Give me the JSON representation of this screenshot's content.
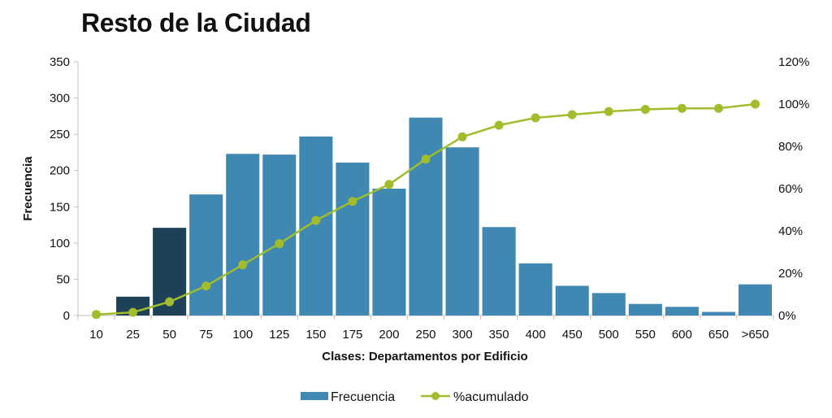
{
  "chart_data": {
    "type": "bar",
    "title": "Resto de la Ciudad",
    "xlabel": "Clases: Departamentos por Edificio",
    "ylabel": "Frecuencia",
    "categories": [
      "10",
      "25",
      "50",
      "75",
      "100",
      "125",
      "150",
      "175",
      "200",
      "250",
      "300",
      "350",
      "400",
      "450",
      "500",
      "550",
      "600",
      "650",
      ">650"
    ],
    "series": [
      {
        "name": "Frecuencia",
        "type": "bar",
        "axis": "left",
        "values": [
          0,
          26,
          121,
          167,
          223,
          222,
          247,
          211,
          175,
          273,
          232,
          122,
          72,
          41,
          31,
          16,
          12,
          5,
          43
        ],
        "highlight": [
          false,
          true,
          true,
          false,
          false,
          false,
          false,
          false,
          false,
          false,
          false,
          false,
          false,
          false,
          false,
          false,
          false,
          false,
          false
        ]
      },
      {
        "name": "%acumulado",
        "type": "line",
        "axis": "right",
        "values": [
          0.5,
          1.5,
          6.5,
          14,
          24,
          34,
          45,
          54,
          62,
          74,
          84.5,
          90,
          93.5,
          95,
          96.5,
          97.5,
          98,
          98,
          100
        ]
      }
    ],
    "ylim": [
      0,
      350
    ],
    "yticks": [
      "0",
      "50",
      "100",
      "150",
      "200",
      "250",
      "300",
      "350"
    ],
    "y2lim": [
      0,
      120
    ],
    "y2ticks": [
      "0%",
      "20%",
      "40%",
      "60%",
      "80%",
      "100%",
      "120%"
    ],
    "grid": false,
    "legend_position": "bottom-center",
    "colors": {
      "bar": "#3f88b2",
      "bar_highlight": "#1e4158",
      "line": "#a1bc2c"
    }
  }
}
